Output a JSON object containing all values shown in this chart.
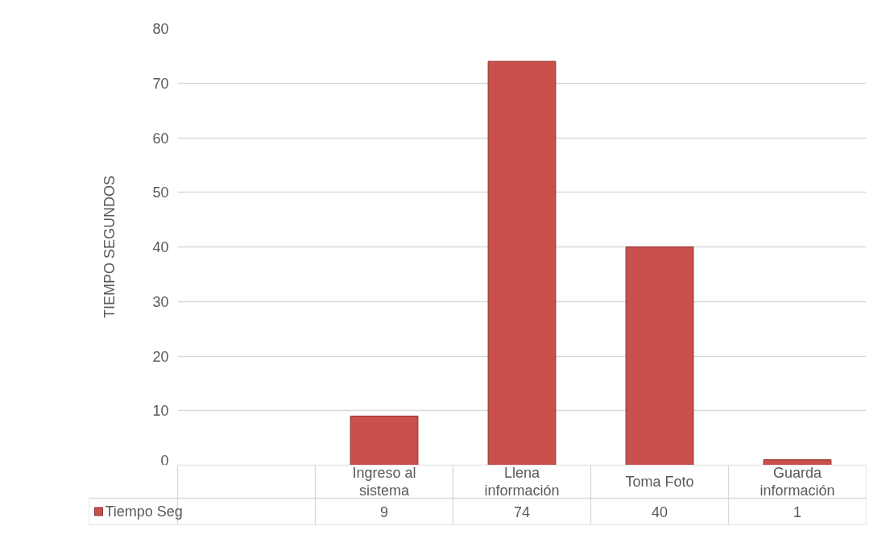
{
  "chart_data": {
    "type": "bar",
    "ylabel": "TIEMPO SEGUNDOS",
    "categories": [
      null,
      "Ingreso al sistema",
      "Llena información",
      "Toma Foto",
      "Guarda información"
    ],
    "series": [
      {
        "name": "Tiempo Seg",
        "color": "#c9504d",
        "values": [
          null,
          9,
          74,
          40,
          1
        ]
      }
    ],
    "ylim": [
      0,
      80
    ],
    "yticks": [
      0,
      10,
      20,
      30,
      40,
      50,
      60,
      70,
      80
    ],
    "grid": "y",
    "legend": "bottom",
    "data_labels": true
  }
}
